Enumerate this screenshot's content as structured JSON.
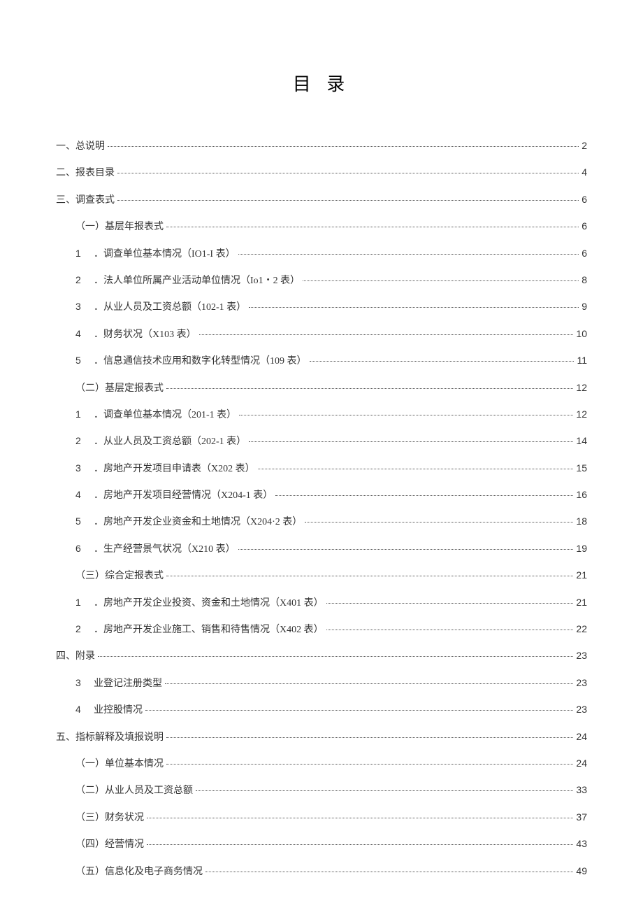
{
  "title": "目 录",
  "entries": [
    {
      "indent": 0,
      "prefix": "",
      "label": "一、总说明",
      "page": "2"
    },
    {
      "indent": 0,
      "prefix": "",
      "label": "二、报表目录",
      "page": "4"
    },
    {
      "indent": 0,
      "prefix": "",
      "label": "三、调查表式",
      "page": "6"
    },
    {
      "indent": 1,
      "prefix": "",
      "label": "（一）基层年报表式",
      "page": "6"
    },
    {
      "indent": 2,
      "prefix": "1",
      "label": "．调查单位基本情况（IO1-I 表）",
      "page": "6"
    },
    {
      "indent": 2,
      "prefix": "2",
      "label": "．法人单位所属产业活动单位情况（Io1・2 表）",
      "page": "8"
    },
    {
      "indent": 2,
      "prefix": "3",
      "label": "．从业人员及工资总额（102-1 表）",
      "page": "9"
    },
    {
      "indent": 2,
      "prefix": "4",
      "label": "．财务状况（X103 表）",
      "page": "10"
    },
    {
      "indent": 2,
      "prefix": "5",
      "label": "．信息通信技术应用和数字化转型情况（109 表）",
      "page": "11"
    },
    {
      "indent": 1,
      "prefix": "",
      "label": "（二）基层定报表式",
      "page": "12"
    },
    {
      "indent": 2,
      "prefix": "1",
      "label": "．调查单位基本情况（201-1 表）",
      "page": "12"
    },
    {
      "indent": 2,
      "prefix": "2",
      "label": "．从业人员及工资总额（202-1 表）",
      "page": "14"
    },
    {
      "indent": 2,
      "prefix": "3",
      "label": "．房地产开发项目申请表（X202 表）",
      "page": "15"
    },
    {
      "indent": 2,
      "prefix": "4",
      "label": "．房地产开发项目经营情况（X204-1 表）",
      "page": "16"
    },
    {
      "indent": 2,
      "prefix": "5",
      "label": "．房地产开发企业资金和土地情况（X204·2 表）",
      "page": "18"
    },
    {
      "indent": 2,
      "prefix": "6",
      "label": "．生产经营景气状况（X210 表）",
      "page": "19"
    },
    {
      "indent": 1,
      "prefix": "",
      "label": "（三）综合定报表式",
      "page": "21"
    },
    {
      "indent": 2,
      "prefix": "1",
      "label": "．房地产开发企业投资、资金和土地情况（X401 表）",
      "page": "21"
    },
    {
      "indent": 2,
      "prefix": "2",
      "label": "．房地产开发企业施工、销售和待售情况（X402 表）",
      "page": "22"
    },
    {
      "indent": 0,
      "prefix": "",
      "label": "四、附录",
      "page": "23"
    },
    {
      "indent": 2,
      "prefix": "3",
      "label": "业登记注册类型",
      "page": "23"
    },
    {
      "indent": 2,
      "prefix": "4",
      "label": "业控股情况",
      "page": "23"
    },
    {
      "indent": 0,
      "prefix": "",
      "label": "五、指标解释及填报说明",
      "page": "24"
    },
    {
      "indent": 1,
      "prefix": "",
      "label": "（一）单位基本情况",
      "page": "24"
    },
    {
      "indent": 1,
      "prefix": "",
      "label": "（二）从业人员及工资总额",
      "page": "33"
    },
    {
      "indent": 1,
      "prefix": "",
      "label": "（三）财务状况",
      "page": "37"
    },
    {
      "indent": 1,
      "prefix": "",
      "label": "（四）经营情况",
      "page": "43"
    },
    {
      "indent": 1,
      "prefix": "",
      "label": "（五）信息化及电子商务情况",
      "page": "49"
    }
  ]
}
